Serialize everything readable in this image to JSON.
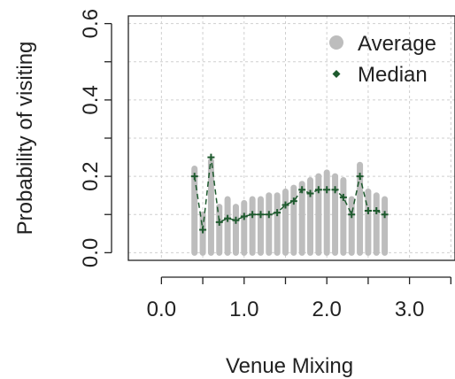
{
  "chart_data": {
    "type": "bar",
    "xlabel": "Venue Mixing",
    "ylabel": "Probability of visiting",
    "xlim": [
      -0.4,
      3.55
    ],
    "ylim": [
      -0.02,
      0.62
    ],
    "x_ticks": [
      0.0,
      1.0,
      2.0,
      3.0
    ],
    "x_tick_labels": [
      "0.0",
      "1.0",
      "2.0",
      "3.0"
    ],
    "y_ticks": [
      0.0,
      0.2,
      0.4,
      0.6
    ],
    "y_tick_labels": [
      "0.0",
      "0.2",
      "0.4",
      "0.6"
    ],
    "grid": true,
    "legend_position": "top-right",
    "series": [
      {
        "name": "Average",
        "kind": "bar",
        "color": "#bdbdbd",
        "x": [
          0.4,
          0.5,
          0.6,
          0.7,
          0.8,
          0.9,
          1.0,
          1.1,
          1.2,
          1.3,
          1.4,
          1.5,
          1.6,
          1.7,
          1.8,
          1.9,
          2.0,
          2.1,
          2.2,
          2.3,
          2.4,
          2.5,
          2.6,
          2.7
        ],
        "values": [
          0.22,
          0.1,
          0.24,
          0.12,
          0.14,
          0.12,
          0.13,
          0.14,
          0.14,
          0.15,
          0.15,
          0.16,
          0.17,
          0.18,
          0.19,
          0.2,
          0.21,
          0.2,
          0.19,
          0.14,
          0.23,
          0.16,
          0.15,
          0.14
        ]
      },
      {
        "name": "Median",
        "kind": "line",
        "color": "#1e5a2e",
        "x": [
          0.4,
          0.5,
          0.6,
          0.7,
          0.8,
          0.9,
          1.0,
          1.1,
          1.2,
          1.3,
          1.4,
          1.5,
          1.6,
          1.7,
          1.8,
          1.9,
          2.0,
          2.1,
          2.2,
          2.3,
          2.4,
          2.5,
          2.6,
          2.7
        ],
        "values": [
          0.2,
          0.06,
          0.25,
          0.08,
          0.09,
          0.085,
          0.095,
          0.1,
          0.1,
          0.1,
          0.105,
          0.125,
          0.135,
          0.165,
          0.155,
          0.165,
          0.165,
          0.165,
          0.145,
          0.1,
          0.2,
          0.11,
          0.11,
          0.1
        ]
      }
    ]
  }
}
